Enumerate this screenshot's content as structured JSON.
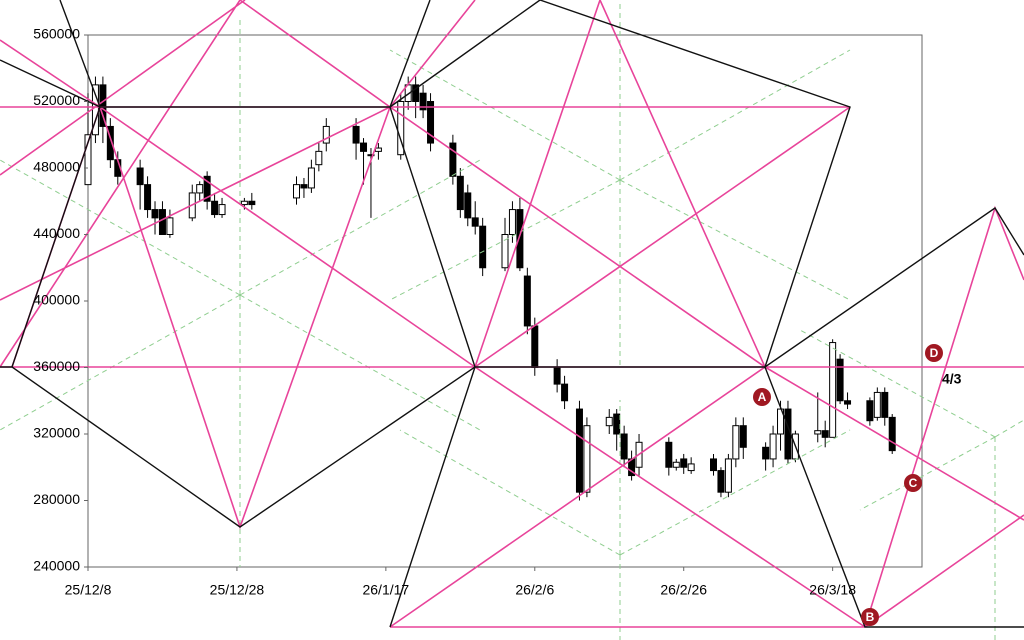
{
  "chart_data": {
    "type": "candlestick",
    "x": [
      "2025-12-08",
      "2025-12-09",
      "2025-12-10",
      "2025-12-11",
      "2025-12-12",
      "2025-12-15",
      "2025-12-16",
      "2025-12-17",
      "2025-12-18",
      "2025-12-19",
      "2025-12-22",
      "2025-12-23",
      "2025-12-24",
      "2025-12-25",
      "2025-12-26",
      "2025-12-29",
      "2025-12-30",
      "2026-01-05",
      "2026-01-06",
      "2026-01-07",
      "2026-01-08",
      "2026-01-09",
      "2026-01-13",
      "2026-01-14",
      "2026-01-15",
      "2026-01-16",
      "2026-01-19",
      "2026-01-20",
      "2026-01-21",
      "2026-01-22",
      "2026-01-23",
      "2026-01-26",
      "2026-01-27",
      "2026-01-28",
      "2026-01-29",
      "2026-01-30",
      "2026-02-02",
      "2026-02-03",
      "2026-02-04",
      "2026-02-05",
      "2026-02-06",
      "2026-02-09",
      "2026-02-10",
      "2026-02-12",
      "2026-02-13",
      "2026-02-16",
      "2026-02-17",
      "2026-02-18",
      "2026-02-19",
      "2026-02-20",
      "2026-02-24",
      "2026-02-25",
      "2026-02-26",
      "2026-02-27",
      "2026-03-02",
      "2026-03-03",
      "2026-03-04",
      "2026-03-05",
      "2026-03-06",
      "2026-03-09",
      "2026-03-10",
      "2026-03-11",
      "2026-03-12",
      "2026-03-13",
      "2026-03-16",
      "2026-03-17",
      "2026-03-18",
      "2026-03-19",
      "2026-03-20",
      "2026-03-23",
      "2026-03-24",
      "2026-03-25",
      "2026-03-26"
    ],
    "open": [
      470000,
      500000,
      530000,
      505000,
      485000,
      480000,
      470000,
      455000,
      455000,
      440000,
      450000,
      465000,
      475000,
      460000,
      452000,
      458000,
      460000,
      462000,
      470000,
      468000,
      482000,
      495000,
      505000,
      495000,
      488000,
      490000,
      488000,
      520000,
      530000,
      525000,
      520000,
      495000,
      475000,
      465000,
      450000,
      445000,
      420000,
      440000,
      455000,
      415000,
      385000,
      360000,
      350000,
      335000,
      285000,
      325000,
      332000,
      320000,
      305000,
      300000,
      315000,
      300000,
      305000,
      298000,
      305000,
      298000,
      285000,
      305000,
      325000,
      312000,
      305000,
      320000,
      335000,
      305000,
      320000,
      322000,
      318000,
      365000,
      340000,
      340000,
      330000,
      345000,
      330000
    ],
    "high": [
      525000,
      535000,
      535000,
      510000,
      490000,
      485000,
      475000,
      460000,
      460000,
      455000,
      470000,
      472000,
      478000,
      465000,
      462000,
      462000,
      465000,
      475000,
      474000,
      485000,
      495000,
      510000,
      510000,
      498000,
      492000,
      495000,
      525000,
      535000,
      535000,
      530000,
      525000,
      500000,
      480000,
      470000,
      460000,
      450000,
      450000,
      460000,
      462000,
      420000,
      390000,
      365000,
      355000,
      340000,
      330000,
      335000,
      335000,
      325000,
      310000,
      320000,
      318000,
      305000,
      308000,
      306000,
      308000,
      300000,
      308000,
      330000,
      330000,
      315000,
      325000,
      340000,
      340000,
      322000,
      345000,
      328000,
      377000,
      368000,
      345000,
      342000,
      348000,
      348000,
      332000
    ],
    "low": [
      470000,
      495000,
      495000,
      480000,
      470000,
      455000,
      450000,
      440000,
      440000,
      438000,
      448000,
      460000,
      455000,
      450000,
      450000,
      455000,
      455000,
      458000,
      462000,
      465000,
      478000,
      490000,
      485000,
      470000,
      450000,
      485000,
      485000,
      515000,
      510000,
      510000,
      490000,
      470000,
      450000,
      445000,
      440000,
      415000,
      418000,
      435000,
      418000,
      380000,
      355000,
      345000,
      335000,
      280000,
      282000,
      320000,
      310000,
      300000,
      292000,
      295000,
      295000,
      298000,
      296000,
      296000,
      295000,
      282000,
      282000,
      300000,
      305000,
      298000,
      300000,
      310000,
      302000,
      303000,
      315000,
      312000,
      318000,
      338000,
      335000,
      325000,
      328000,
      325000,
      308000
    ],
    "close": [
      500000,
      530000,
      505000,
      485000,
      475000,
      470000,
      455000,
      450000,
      440000,
      450000,
      465000,
      470000,
      460000,
      452000,
      458000,
      460000,
      458000,
      470000,
      468000,
      480000,
      490000,
      505000,
      495000,
      490000,
      488000,
      492000,
      520000,
      530000,
      520000,
      515000,
      495000,
      475000,
      455000,
      450000,
      445000,
      420000,
      440000,
      455000,
      420000,
      385000,
      360000,
      350000,
      340000,
      285000,
      325000,
      330000,
      320000,
      305000,
      295000,
      315000,
      300000,
      303000,
      300000,
      302000,
      298000,
      285000,
      305000,
      325000,
      312000,
      305000,
      320000,
      335000,
      305000,
      320000,
      322000,
      318000,
      375000,
      340000,
      338000,
      328000,
      345000,
      330000,
      310000
    ],
    "up_color": "#ffffff",
    "down_color": "#000000",
    "xlim": [
      "2025-12-08",
      "2026-03-30"
    ],
    "xticks": [
      {
        "value": "2025-12-08",
        "label": "25/12/8"
      },
      {
        "value": "2025-12-28",
        "label": "25/12/28"
      },
      {
        "value": "2026-01-17",
        "label": "26/1/17"
      },
      {
        "value": "2026-02-06",
        "label": "26/2/6"
      },
      {
        "value": "2026-02-26",
        "label": "26/2/26"
      },
      {
        "value": "2026-03-18",
        "label": "26/3/18"
      }
    ],
    "ylim": [
      240000,
      560000
    ],
    "yticks": [
      240000,
      280000,
      320000,
      360000,
      400000,
      440000,
      480000,
      520000,
      560000
    ],
    "annotations": [
      "A",
      "B",
      "C",
      "D",
      "4/3"
    ]
  }
}
